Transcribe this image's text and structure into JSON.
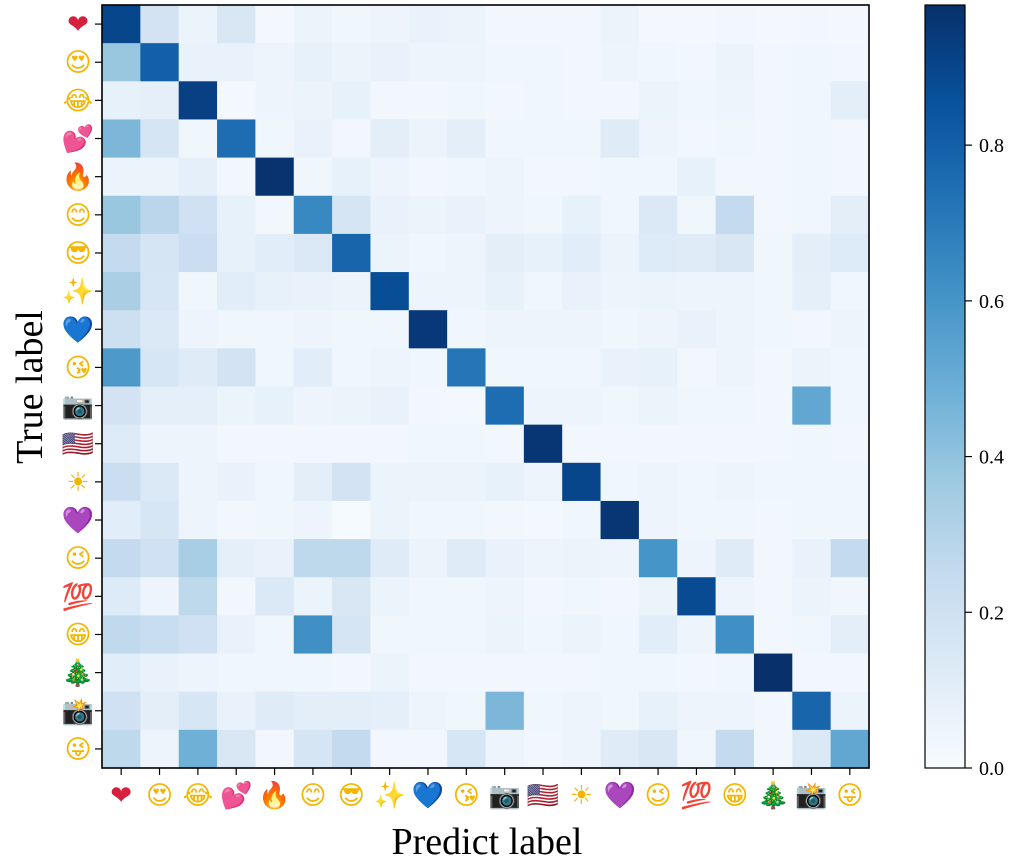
{
  "chart_data": {
    "type": "heatmap",
    "title": "",
    "xlabel": "Predict label",
    "ylabel": "True label",
    "categories": [
      "❤",
      "😍",
      "😂",
      "💕",
      "🔥",
      "😊",
      "😎",
      "✨",
      "💙",
      "😘",
      "📷",
      "🇺🇸",
      "☀",
      "💜",
      "😉",
      "💯",
      "😁",
      "🎄",
      "📸",
      "😜"
    ],
    "colorbar": {
      "range": [
        0.0,
        0.98
      ],
      "ticks": [
        0.0,
        0.2,
        0.4,
        0.6,
        0.8
      ],
      "tick_labels": [
        "0.0",
        "0.2",
        "0.4",
        "0.6",
        "0.8"
      ],
      "colormap": "Blues"
    },
    "grid": false,
    "values": [
      [
        0.9,
        0.18,
        0.06,
        0.15,
        0.02,
        0.06,
        0.04,
        0.05,
        0.07,
        0.06,
        0.03,
        0.03,
        0.03,
        0.06,
        0.02,
        0.02,
        0.03,
        0.02,
        0.03,
        0.02
      ],
      [
        0.38,
        0.8,
        0.07,
        0.07,
        0.05,
        0.08,
        0.06,
        0.07,
        0.05,
        0.05,
        0.04,
        0.04,
        0.03,
        0.05,
        0.04,
        0.03,
        0.06,
        0.03,
        0.04,
        0.03
      ],
      [
        0.08,
        0.09,
        0.92,
        0.02,
        0.05,
        0.06,
        0.08,
        0.03,
        0.03,
        0.04,
        0.03,
        0.04,
        0.03,
        0.03,
        0.06,
        0.04,
        0.05,
        0.03,
        0.04,
        0.1
      ],
      [
        0.45,
        0.17,
        0.04,
        0.75,
        0.04,
        0.07,
        0.03,
        0.1,
        0.06,
        0.1,
        0.04,
        0.04,
        0.04,
        0.12,
        0.05,
        0.03,
        0.04,
        0.03,
        0.04,
        0.03
      ],
      [
        0.06,
        0.06,
        0.09,
        0.03,
        0.97,
        0.04,
        0.08,
        0.05,
        0.03,
        0.04,
        0.05,
        0.03,
        0.03,
        0.04,
        0.04,
        0.08,
        0.03,
        0.03,
        0.04,
        0.03
      ],
      [
        0.38,
        0.28,
        0.2,
        0.08,
        0.03,
        0.65,
        0.17,
        0.07,
        0.06,
        0.07,
        0.05,
        0.04,
        0.08,
        0.04,
        0.14,
        0.04,
        0.25,
        0.03,
        0.04,
        0.1
      ],
      [
        0.25,
        0.17,
        0.22,
        0.08,
        0.11,
        0.14,
        0.78,
        0.06,
        0.04,
        0.05,
        0.1,
        0.08,
        0.11,
        0.06,
        0.13,
        0.12,
        0.15,
        0.04,
        0.1,
        0.13
      ],
      [
        0.33,
        0.16,
        0.04,
        0.11,
        0.08,
        0.07,
        0.06,
        0.87,
        0.05,
        0.05,
        0.08,
        0.04,
        0.07,
        0.05,
        0.06,
        0.05,
        0.05,
        0.04,
        0.09,
        0.04
      ],
      [
        0.21,
        0.14,
        0.05,
        0.04,
        0.04,
        0.05,
        0.04,
        0.04,
        0.95,
        0.04,
        0.05,
        0.05,
        0.05,
        0.04,
        0.05,
        0.07,
        0.05,
        0.04,
        0.03,
        0.05
      ],
      [
        0.58,
        0.16,
        0.12,
        0.18,
        0.04,
        0.11,
        0.04,
        0.05,
        0.04,
        0.72,
        0.04,
        0.04,
        0.04,
        0.07,
        0.08,
        0.03,
        0.05,
        0.03,
        0.06,
        0.04
      ],
      [
        0.18,
        0.09,
        0.09,
        0.06,
        0.08,
        0.05,
        0.06,
        0.07,
        0.03,
        0.02,
        0.75,
        0.05,
        0.05,
        0.04,
        0.06,
        0.04,
        0.04,
        0.03,
        0.52,
        0.04
      ],
      [
        0.13,
        0.05,
        0.05,
        0.03,
        0.03,
        0.03,
        0.03,
        0.03,
        0.04,
        0.04,
        0.03,
        0.96,
        0.03,
        0.03,
        0.03,
        0.03,
        0.03,
        0.03,
        0.04,
        0.03
      ],
      [
        0.22,
        0.14,
        0.05,
        0.07,
        0.04,
        0.1,
        0.18,
        0.06,
        0.06,
        0.06,
        0.08,
        0.05,
        0.9,
        0.04,
        0.05,
        0.04,
        0.05,
        0.04,
        0.04,
        0.04
      ],
      [
        0.11,
        0.16,
        0.05,
        0.03,
        0.04,
        0.05,
        0.01,
        0.06,
        0.04,
        0.04,
        0.03,
        0.02,
        0.04,
        0.96,
        0.05,
        0.04,
        0.04,
        0.03,
        0.04,
        0.04
      ],
      [
        0.25,
        0.2,
        0.34,
        0.09,
        0.07,
        0.27,
        0.27,
        0.12,
        0.06,
        0.12,
        0.07,
        0.05,
        0.06,
        0.05,
        0.6,
        0.05,
        0.12,
        0.03,
        0.07,
        0.25
      ],
      [
        0.13,
        0.05,
        0.27,
        0.03,
        0.14,
        0.06,
        0.15,
        0.06,
        0.04,
        0.04,
        0.05,
        0.03,
        0.04,
        0.03,
        0.06,
        0.88,
        0.05,
        0.03,
        0.06,
        0.04
      ],
      [
        0.26,
        0.23,
        0.2,
        0.07,
        0.04,
        0.62,
        0.17,
        0.04,
        0.04,
        0.04,
        0.06,
        0.04,
        0.06,
        0.04,
        0.11,
        0.05,
        0.62,
        0.03,
        0.04,
        0.1
      ],
      [
        0.11,
        0.07,
        0.05,
        0.04,
        0.04,
        0.04,
        0.03,
        0.06,
        0.03,
        0.03,
        0.03,
        0.03,
        0.03,
        0.04,
        0.04,
        0.03,
        0.04,
        0.98,
        0.03,
        0.03
      ],
      [
        0.2,
        0.1,
        0.16,
        0.07,
        0.12,
        0.1,
        0.1,
        0.09,
        0.05,
        0.04,
        0.45,
        0.04,
        0.05,
        0.04,
        0.08,
        0.05,
        0.05,
        0.03,
        0.78,
        0.06
      ],
      [
        0.27,
        0.05,
        0.48,
        0.15,
        0.03,
        0.17,
        0.25,
        0.03,
        0.03,
        0.16,
        0.05,
        0.03,
        0.05,
        0.12,
        0.15,
        0.04,
        0.25,
        0.03,
        0.14,
        0.52
      ]
    ],
    "emoji_colors": [
      "#d6203e",
      "#f4b400",
      "#f4b400",
      "#d6203e",
      "#f57c00",
      "#f4b400",
      "#f4b400",
      "#f4c20d",
      "#5aa9e6",
      "#f4b400",
      "#455a64",
      "#3c5aa8",
      "#f4b400",
      "#a58be0",
      "#f4b400",
      "#d6203e",
      "#f4b400",
      "#2e7d32",
      "#455a64",
      "#f4b400"
    ]
  }
}
